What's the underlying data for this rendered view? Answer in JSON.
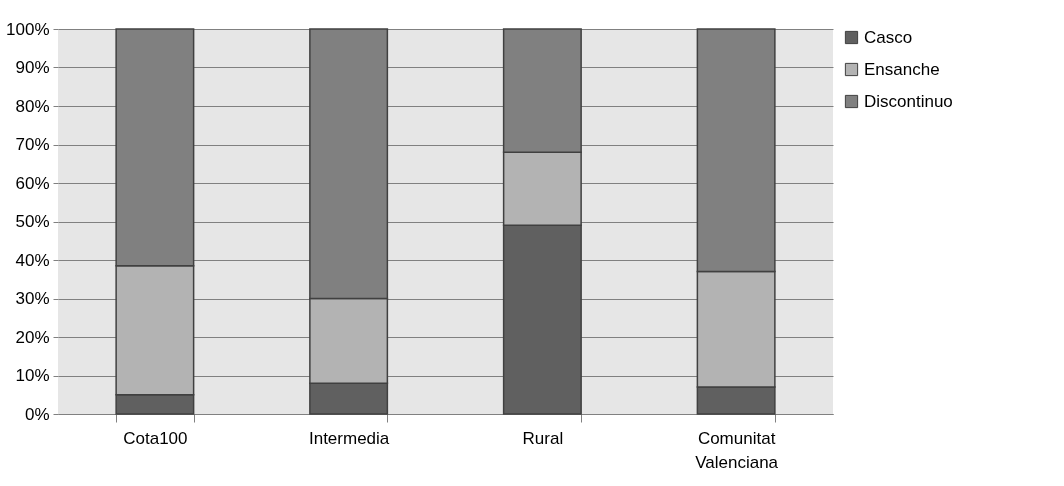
{
  "chart_data": {
    "type": "bar",
    "stacked": true,
    "categories": [
      "Cota100",
      "Intermedia",
      "Rural",
      "Comunitat Valenciana"
    ],
    "series": [
      {
        "name": "Casco",
        "color": "#606060",
        "values": [
          5,
          8,
          49,
          7
        ]
      },
      {
        "name": "Ensanche",
        "color": "#b3b3b3",
        "values": [
          33.5,
          22,
          19,
          30
        ]
      },
      {
        "name": "Discontinuo",
        "color": "#808080",
        "values": [
          61.5,
          70,
          32,
          63
        ]
      }
    ],
    "ylim": [
      0,
      100
    ],
    "yticks": [
      {
        "value": 0,
        "label": "0%"
      },
      {
        "value": 10,
        "label": "10%"
      },
      {
        "value": 20,
        "label": "20%"
      },
      {
        "value": 30,
        "label": "30%"
      },
      {
        "value": 40,
        "label": "40%"
      },
      {
        "value": 50,
        "label": "50%"
      },
      {
        "value": 60,
        "label": "60%"
      },
      {
        "value": 70,
        "label": "70%"
      },
      {
        "value": 80,
        "label": "80%"
      },
      {
        "value": 90,
        "label": "90%"
      },
      {
        "value": 100,
        "label": "100%"
      }
    ],
    "grid": "y",
    "legend": "right"
  }
}
